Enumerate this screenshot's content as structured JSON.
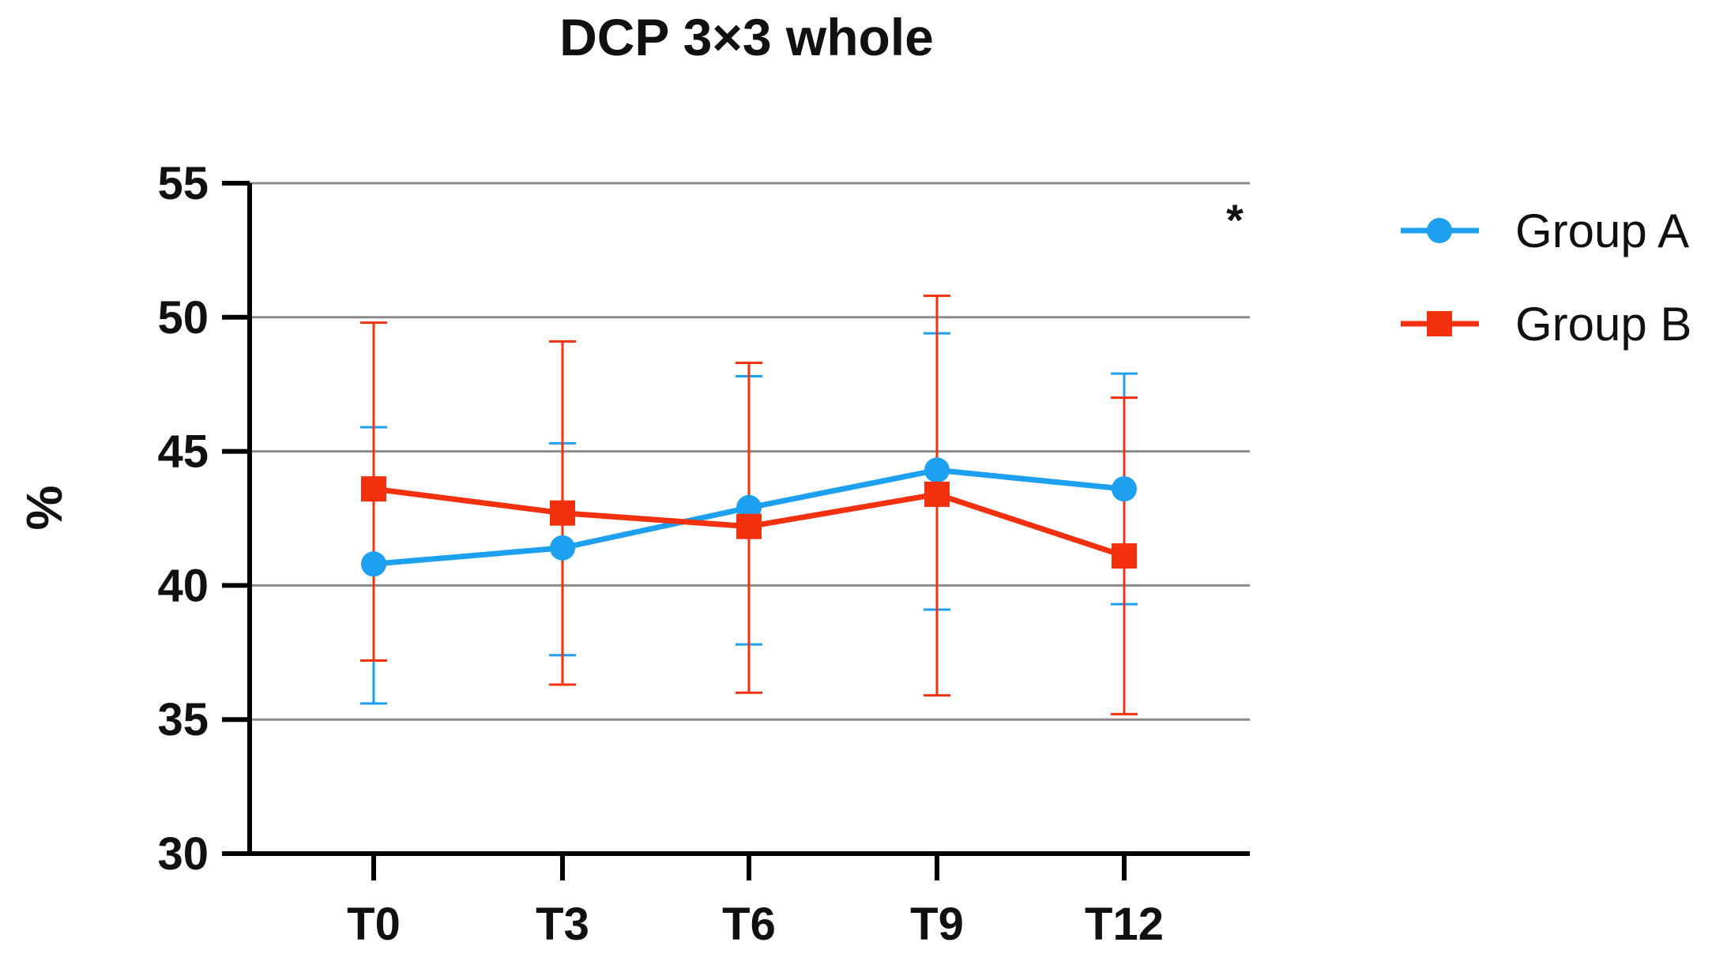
{
  "chart_data": {
    "type": "line",
    "title": "DCP 3×3 whole",
    "xlabel": "",
    "ylabel": "%",
    "categories": [
      "T0",
      "T3",
      "T6",
      "T9",
      "T12"
    ],
    "ylim": [
      30,
      55
    ],
    "yticks": [
      30,
      35,
      40,
      45,
      50,
      55
    ],
    "grid": true,
    "legend_position": "right",
    "annotation": "*",
    "series": [
      {
        "name": "Group A",
        "color": "#1ea0f0",
        "marker": "circle",
        "values": [
          40.8,
          41.4,
          42.9,
          44.3,
          43.6
        ],
        "error_low": [
          35.6,
          37.4,
          37.8,
          39.1,
          39.3
        ],
        "error_high": [
          45.9,
          45.3,
          47.8,
          49.4,
          47.9
        ]
      },
      {
        "name": "Group B",
        "color": "#f4310f",
        "marker": "square",
        "values": [
          43.6,
          42.7,
          42.2,
          43.4,
          41.1
        ],
        "error_low": [
          37.2,
          36.3,
          36.0,
          35.9,
          35.2
        ],
        "error_high": [
          49.8,
          49.1,
          48.3,
          50.8,
          47.0
        ]
      }
    ]
  }
}
